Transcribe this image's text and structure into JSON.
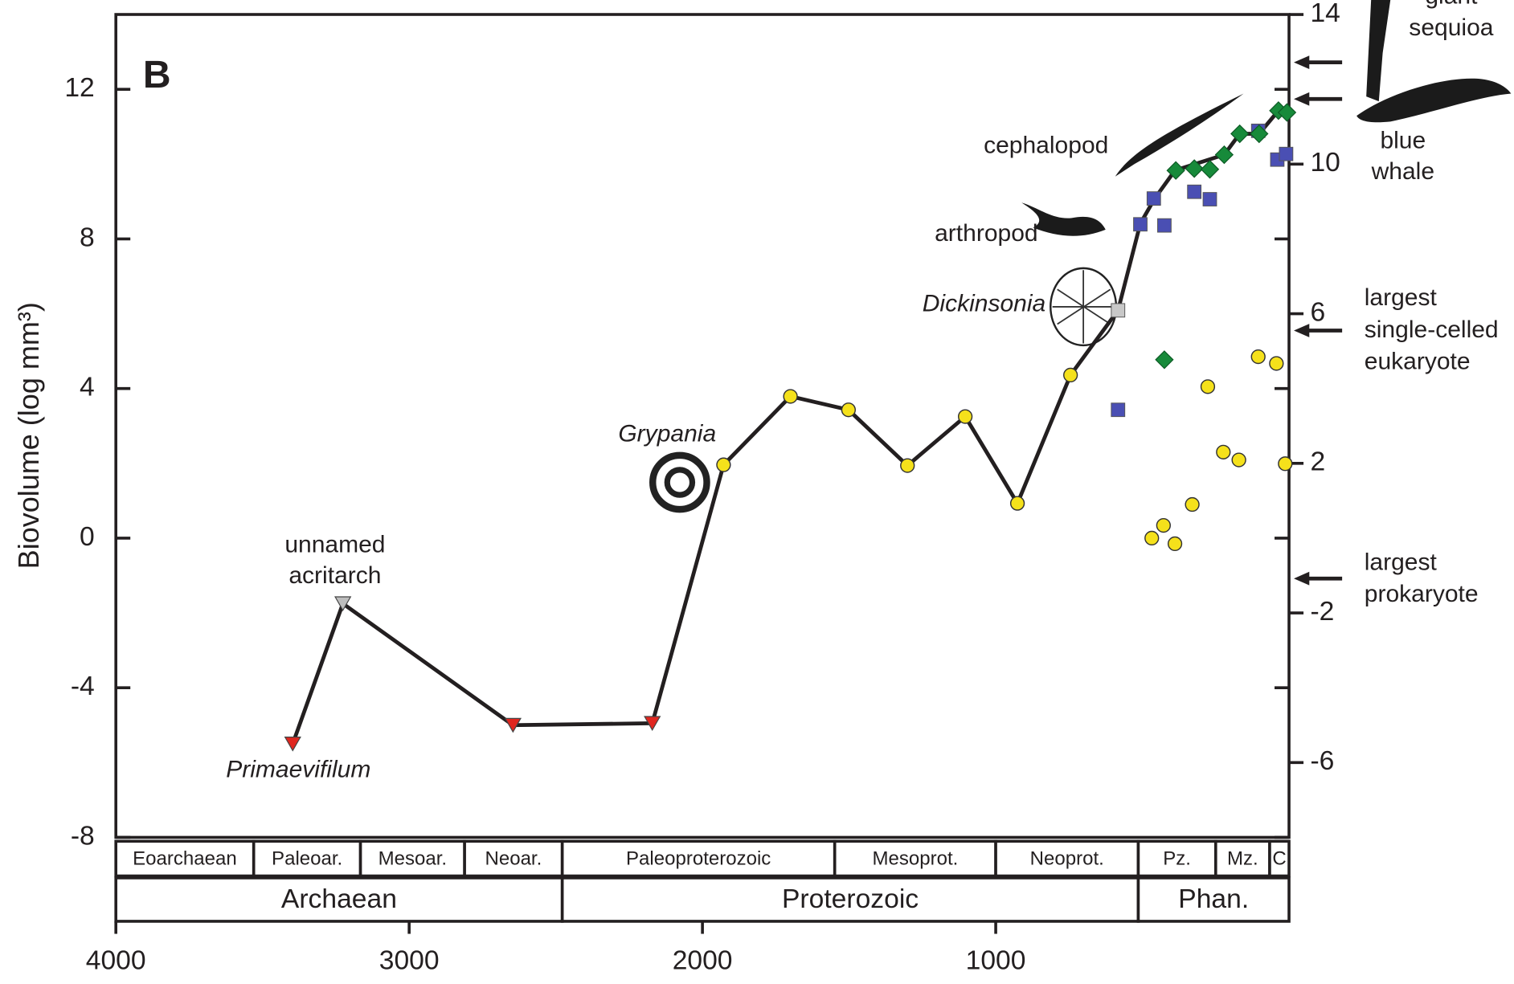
{
  "chart_data": {
    "type": "line",
    "panel_label": "B",
    "ylabel": "Biovolume (log mm³)",
    "xlim": [
      4000,
      0
    ],
    "ylim": [
      -8,
      14
    ],
    "y2lim": [
      -8,
      14
    ],
    "xticks": [
      4000,
      3000,
      2000,
      1000
    ],
    "yticks": [
      -8,
      -4,
      0,
      4,
      8,
      12
    ],
    "y2ticks": [
      -6,
      -2,
      2,
      6,
      10,
      14
    ],
    "line": {
      "color": "#231f20",
      "x": [
        3397,
        3226,
        2646,
        2171,
        1928,
        1700,
        1502,
        1301,
        1104,
        926,
        745,
        583,
        507,
        458,
        389,
        221,
        168,
        102,
        36
      ],
      "values": [
        -5.5,
        -1.75,
        -5.0,
        -4.95,
        1.96,
        3.79,
        3.43,
        1.94,
        3.25,
        0.93,
        4.36,
        6.09,
        8.41,
        9.08,
        9.83,
        10.25,
        10.81,
        10.81,
        11.43
      ]
    },
    "series": [
      {
        "marker": "triangle-down",
        "color": "#e0261f",
        "x": [
          3397,
          2646,
          2171
        ],
        "values": [
          -5.5,
          -5.0,
          -4.95
        ]
      },
      {
        "marker": "triangle-down",
        "color": "#bdbdbd",
        "x": [
          3226
        ],
        "values": [
          -1.75
        ]
      },
      {
        "marker": "square",
        "color": "#c8c8c8",
        "x": [
          583
        ],
        "values": [
          6.09
        ]
      },
      {
        "marker": "circle",
        "color": "#f5e11b",
        "x": [
          1928,
          1700,
          1502,
          1301,
          1104,
          926,
          745,
          468,
          428,
          389,
          330,
          277,
          224,
          171,
          105,
          43,
          13
        ],
        "values": [
          1.96,
          3.79,
          3.43,
          1.94,
          3.25,
          0.93,
          4.36,
          0,
          0.34,
          -0.15,
          0.9,
          4.05,
          2.3,
          2.09,
          4.85,
          4.67,
          1.99
        ]
      },
      {
        "marker": "square",
        "color": "#4a4fb3",
        "x": [
          583,
          507,
          461,
          425,
          323,
          270,
          105,
          40,
          10
        ],
        "values": [
          3.43,
          8.39,
          9.08,
          8.36,
          9.26,
          9.06,
          10.89,
          10.12,
          10.27
        ]
      },
      {
        "marker": "diamond",
        "color": "#178a3a",
        "x": [
          425,
          386,
          323,
          270,
          221,
          168,
          102,
          36,
          7
        ],
        "values": [
          4.77,
          9.83,
          9.88,
          9.86,
          10.25,
          10.81,
          10.81,
          11.43,
          11.38
        ]
      }
    ],
    "annotations": [
      {
        "lines": [
          "unnamed",
          "acritarch"
        ],
        "italic": false
      },
      {
        "lines": [
          "Primaevifilum"
        ],
        "italic": true
      },
      {
        "lines": [
          "Grypania"
        ],
        "italic": true
      },
      {
        "lines": [
          "Dickinsonia"
        ],
        "italic": true
      },
      {
        "lines": [
          "arthropod"
        ],
        "italic": false
      },
      {
        "lines": [
          "cephalopod"
        ],
        "italic": false
      },
      {
        "lines": [
          "blue",
          "whale"
        ],
        "italic": false
      }
    ],
    "reference_levels": [
      {
        "lines": [
          "giant",
          "sequioa"
        ],
        "value": 12.72
      },
      {
        "lines": [],
        "value": 11.74
      },
      {
        "lines": [
          "largest",
          "single-celled",
          "eukaryote"
        ],
        "value": 5.55
      },
      {
        "lines": [
          "largest",
          "prokaryote"
        ],
        "value": -1.08
      }
    ],
    "timescale": {
      "eras": [
        {
          "name": "Eoarchaean",
          "start": 4000,
          "end": 3530
        },
        {
          "name": "Paleoar.",
          "start": 3530,
          "end": 3166
        },
        {
          "name": "Mesoar.",
          "start": 3166,
          "end": 2811
        },
        {
          "name": "Neoar.",
          "start": 2811,
          "end": 2478
        },
        {
          "name": "Paleoproterozoic",
          "start": 2478,
          "end": 1549
        },
        {
          "name": "Mesoprot.",
          "start": 1549,
          "end": 1000
        },
        {
          "name": "Neoprot.",
          "start": 1000,
          "end": 514
        },
        {
          "name": "Pz.",
          "start": 514,
          "end": 250
        },
        {
          "name": "Mz.",
          "start": 250,
          "end": 66
        },
        {
          "name": "C",
          "start": 66,
          "end": 0
        }
      ],
      "eons": [
        {
          "name": "Archaean",
          "start": 4000,
          "end": 2478
        },
        {
          "name": "Proterozoic",
          "start": 2478,
          "end": 514
        },
        {
          "name": "Phan.",
          "start": 514,
          "end": 0
        }
      ]
    }
  }
}
